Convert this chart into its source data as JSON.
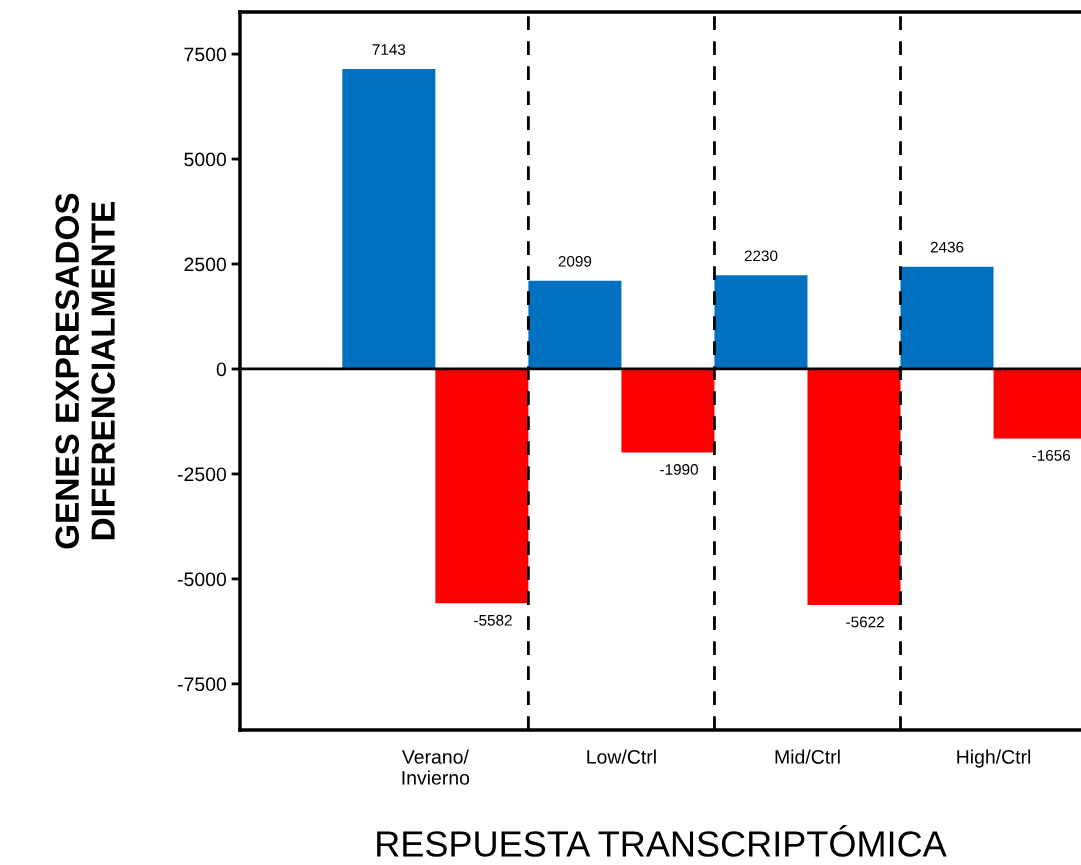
{
  "chart_data": {
    "type": "bar",
    "xlabel": "RESPUESTA TRANSCRIPTÓMICA",
    "ylabel": "GENES EXPRESADOS\nDIFERENCIALMENTE",
    "categories": [
      "Verano/\nInvierno",
      "Low/Ctrl",
      "Mid/Ctrl",
      "High/Ctrl"
    ],
    "series": [
      {
        "color": "#0070c0",
        "values": [
          7143,
          2099,
          2230,
          2436
        ]
      },
      {
        "color": "#ff0000",
        "values": [
          -5582,
          -1990,
          -5622,
          -1656
        ]
      }
    ],
    "ylim": [
      -8600,
      8500
    ],
    "yticks": [
      -7500,
      -5000,
      -2500,
      0,
      2500,
      5000,
      7500
    ],
    "data_labels": true,
    "grid": false,
    "legend": false,
    "ref_lines": [
      {
        "axis": "y",
        "value": 0,
        "color": "#000000",
        "line_style": "solid"
      }
    ]
  }
}
